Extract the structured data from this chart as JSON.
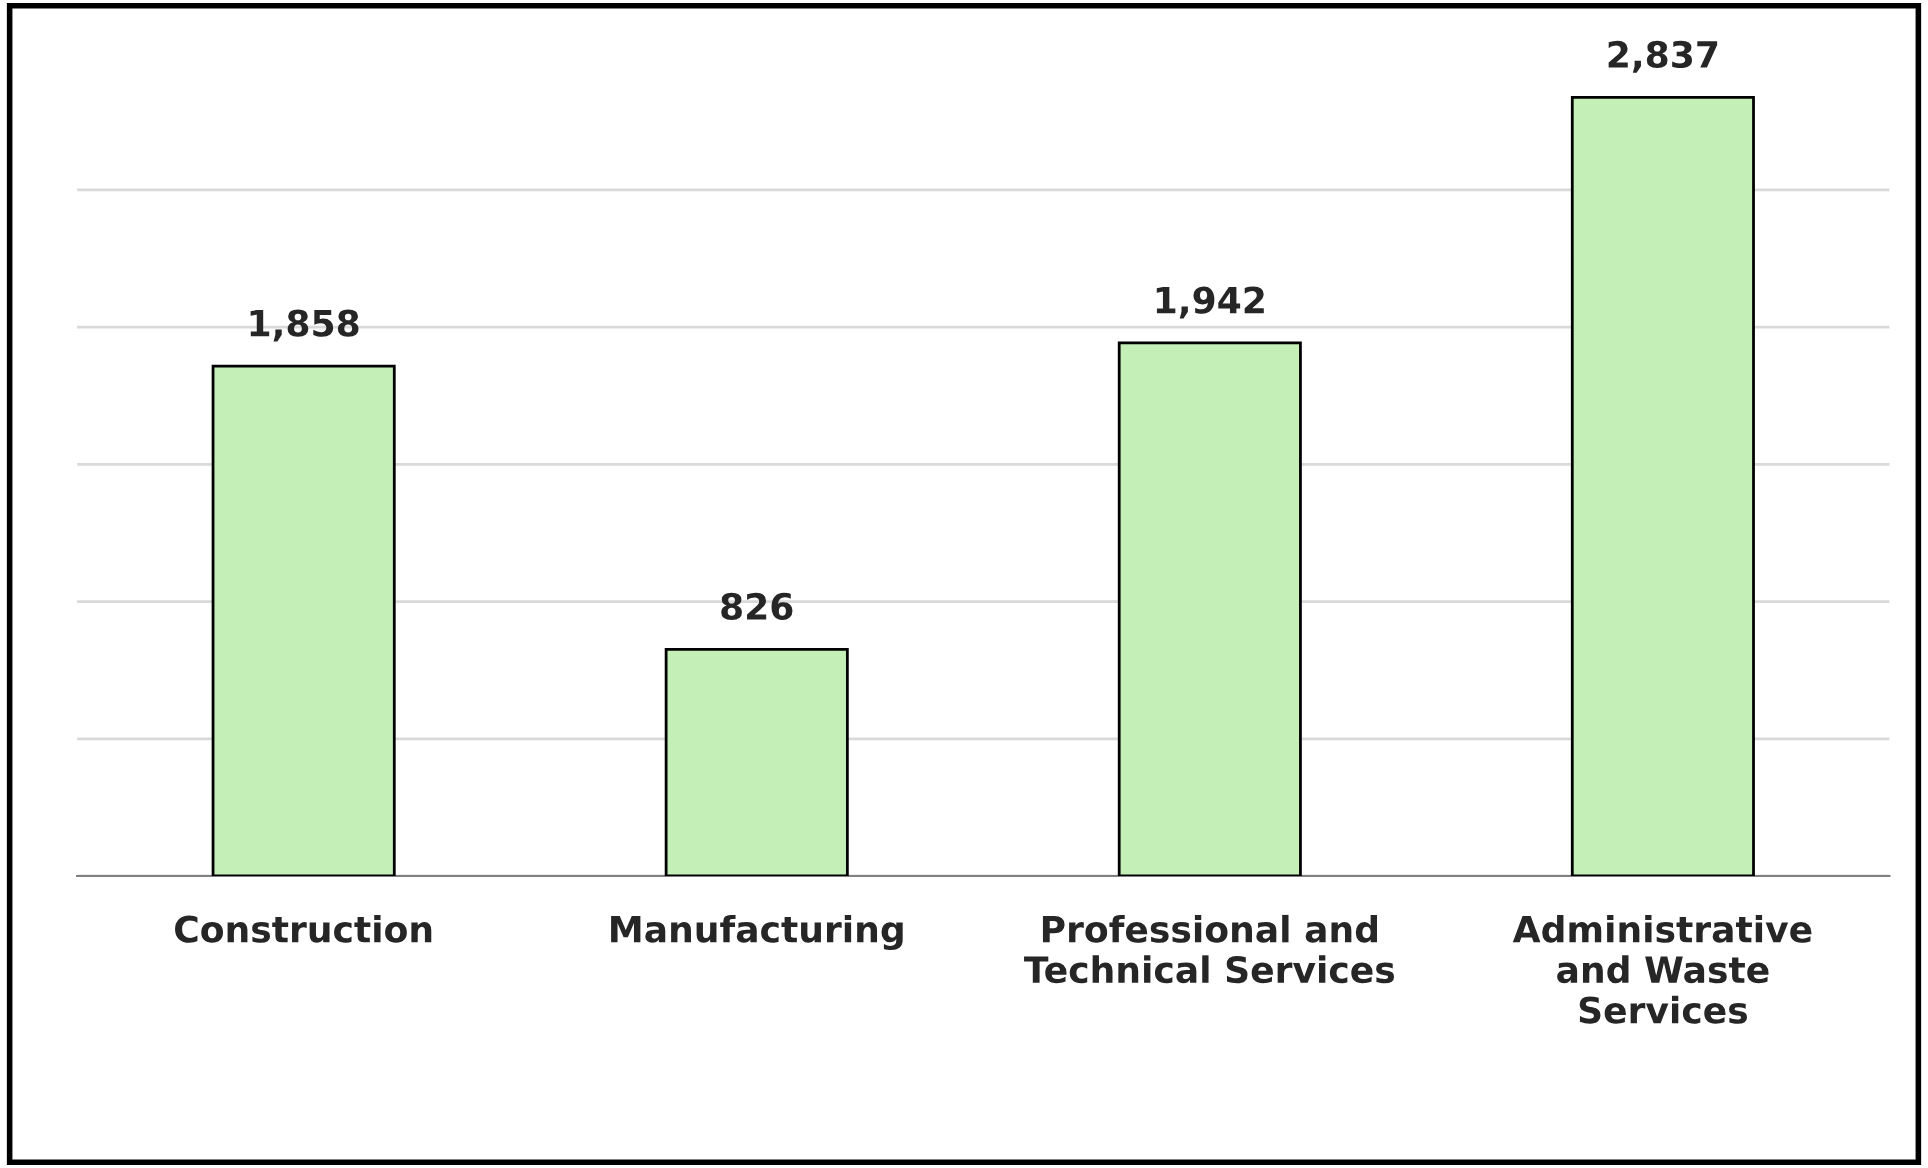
{
  "chart_data": {
    "type": "bar",
    "categories": [
      "Construction",
      "Manufacturing",
      "Professional and\nTechnical Services",
      "Administrative\nand Waste\nServices"
    ],
    "values": [
      1858,
      826,
      1942,
      2837
    ],
    "color": "#c4f0b8",
    "value_labels": [
      "1,858",
      "826",
      "1,942",
      "2,837"
    ],
    "grid": "y",
    "tick_labels": "x"
  }
}
